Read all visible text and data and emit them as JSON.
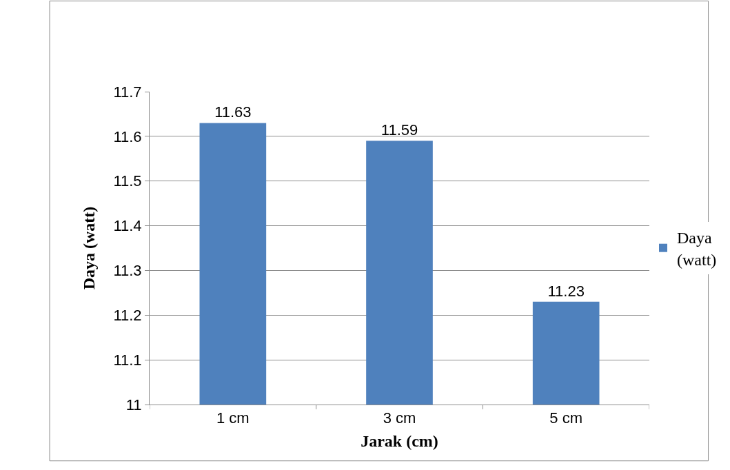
{
  "chart_data": {
    "type": "bar",
    "xlabel": "Jarak (cm)",
    "ylabel": "Daya (watt)",
    "categories": [
      "1 cm",
      "3 cm",
      "5 cm"
    ],
    "series": [
      {
        "name": "Daya (watt)",
        "color": "#4f81bd",
        "values": [
          11.63,
          11.59,
          11.23
        ]
      }
    ],
    "ylim": [
      11,
      11.7
    ],
    "yticks": [
      {
        "value": 11,
        "label": "11"
      },
      11.1,
      11.2,
      11.3,
      11.4,
      11.5,
      11.6,
      11.7
    ],
    "grid": "y",
    "legend": "right",
    "data_labels": true
  }
}
